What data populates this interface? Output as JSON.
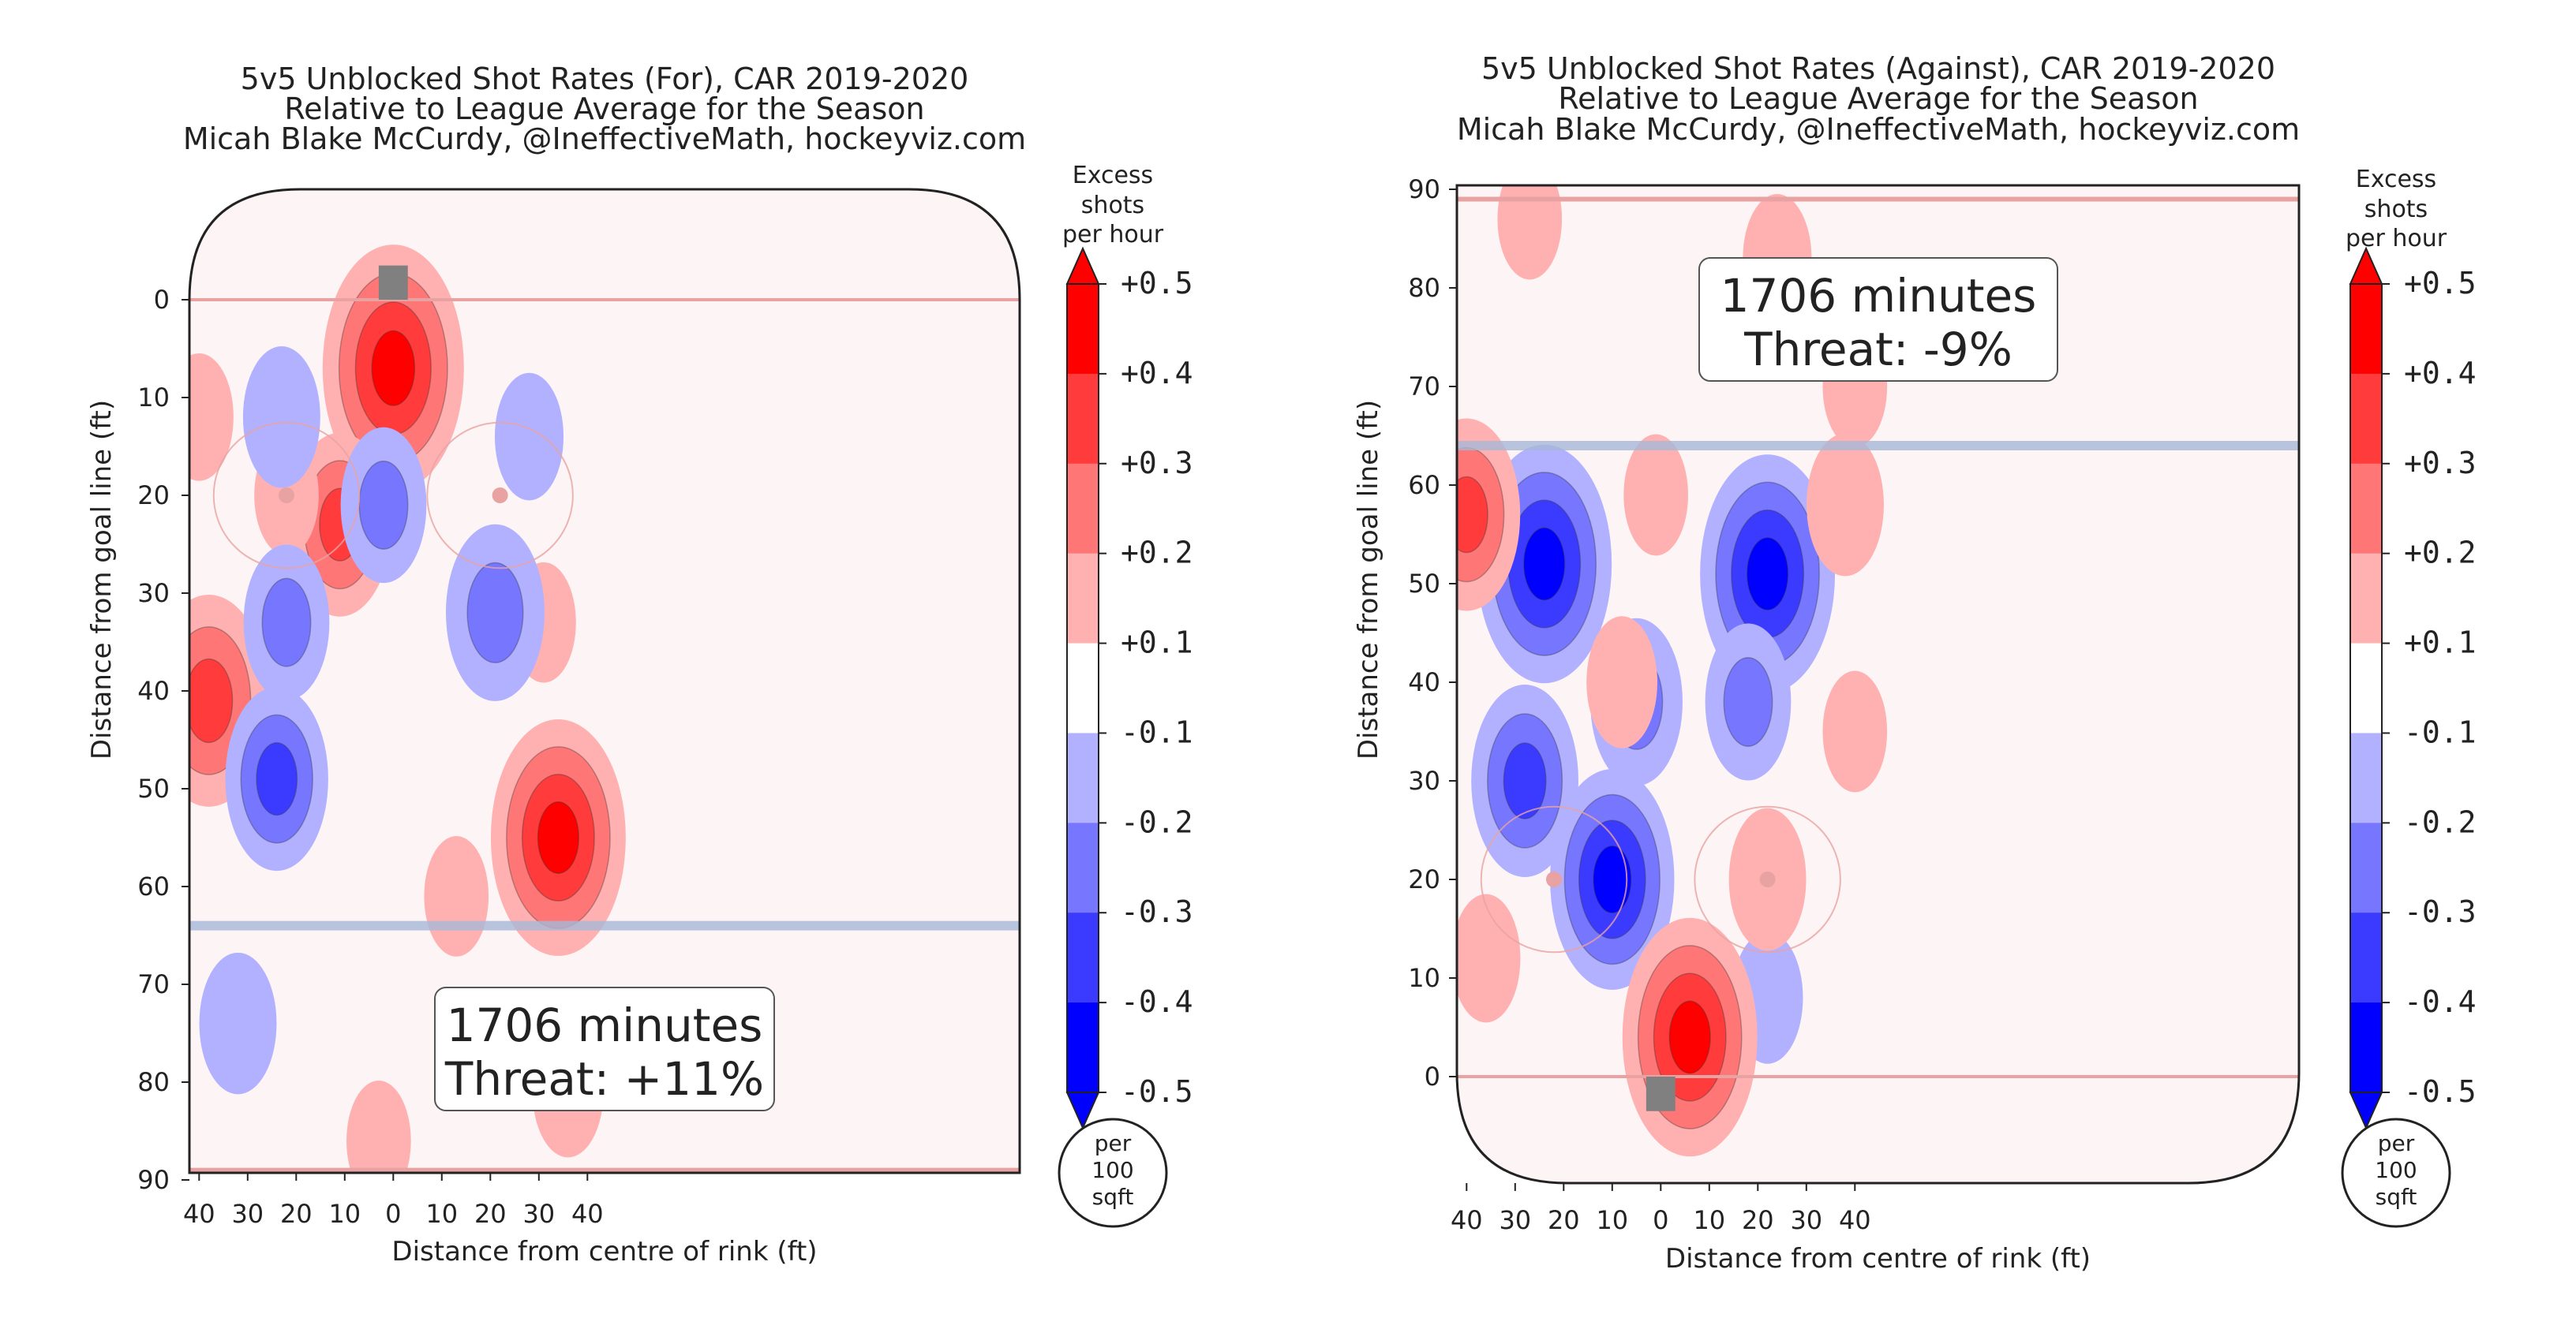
{
  "chart_data": [
    {
      "type": "heatmap",
      "title": [
        "5v5 Unblocked Shot Rates (For), CAR 2019-2020",
        "Relative to League Average for the Season",
        "Micah Blake McCurdy, @IneffectiveMath, hockeyviz.com"
      ],
      "xlabel": "Distance from centre of rink (ft)",
      "ylabel": "Distance from goal line (ft)",
      "x_ticks": [
        "40",
        "30",
        "20",
        "10",
        "0",
        "10",
        "20",
        "30",
        "40"
      ],
      "y_ticks": [
        "0",
        "10",
        "20",
        "30",
        "40",
        "50",
        "60",
        "70",
        "80",
        "90"
      ],
      "ylim": [
        90,
        -12
      ],
      "y_inverted": true,
      "annotation": [
        "1706 minutes",
        "Threat: +11%"
      ],
      "blobs": [
        {
          "x": 0,
          "y": 7,
          "value": 0.48
        },
        {
          "x": 34,
          "y": 55,
          "value": 0.45
        },
        {
          "x": -38,
          "y": 41,
          "value": 0.38
        },
        {
          "x": -11,
          "y": 23,
          "value": 0.3
        },
        {
          "x": -40,
          "y": 12,
          "value": 0.14
        },
        {
          "x": 31,
          "y": 33,
          "value": 0.12
        },
        {
          "x": -22,
          "y": 20,
          "value": 0.12
        },
        {
          "x": 13,
          "y": 61,
          "value": 0.12
        },
        {
          "x": 36,
          "y": 81,
          "value": 0.15
        },
        {
          "x": -3,
          "y": 86,
          "value": 0.12
        },
        {
          "x": 21,
          "y": 32,
          "value": -0.28
        },
        {
          "x": -24,
          "y": 49,
          "value": -0.3
        },
        {
          "x": -22,
          "y": 33,
          "value": -0.22
        },
        {
          "x": -2,
          "y": 21,
          "value": -0.22
        },
        {
          "x": -23,
          "y": 12,
          "value": -0.18
        },
        {
          "x": 28,
          "y": 14,
          "value": -0.14
        },
        {
          "x": -32,
          "y": 74,
          "value": -0.18
        }
      ]
    },
    {
      "type": "heatmap",
      "title": [
        "5v5 Unblocked Shot Rates (Against), CAR 2019-2020",
        "Relative to League Average for the Season",
        "Micah Blake McCurdy, @IneffectiveMath, hockeyviz.com"
      ],
      "xlabel": "Distance from centre of rink (ft)",
      "ylabel": "Distance from goal line (ft)",
      "x_ticks": [
        "40",
        "30",
        "20",
        "10",
        "0",
        "10",
        "20",
        "30",
        "40"
      ],
      "y_ticks": [
        "0",
        "10",
        "20",
        "30",
        "40",
        "50",
        "60",
        "70",
        "80",
        "90"
      ],
      "ylim": [
        -12,
        90
      ],
      "y_inverted": false,
      "annotation": [
        "1706 minutes",
        "Threat: -9%"
      ],
      "blobs": [
        {
          "x": -24,
          "y": 52,
          "value": -0.45
        },
        {
          "x": 22,
          "y": 51,
          "value": -0.45
        },
        {
          "x": -10,
          "y": 20,
          "value": -0.4
        },
        {
          "x": -28,
          "y": 30,
          "value": -0.32
        },
        {
          "x": -5,
          "y": 38,
          "value": -0.25
        },
        {
          "x": 18,
          "y": 38,
          "value": -0.22
        },
        {
          "x": 22,
          "y": 8,
          "value": -0.15
        },
        {
          "x": 6,
          "y": 4,
          "value": 0.45
        },
        {
          "x": -40,
          "y": 57,
          "value": 0.32
        },
        {
          "x": 38,
          "y": 58,
          "value": 0.18
        },
        {
          "x": -8,
          "y": 40,
          "value": 0.15
        },
        {
          "x": 22,
          "y": 20,
          "value": 0.18
        },
        {
          "x": -36,
          "y": 12,
          "value": 0.14
        },
        {
          "x": 24,
          "y": 83,
          "value": 0.14
        },
        {
          "x": -27,
          "y": 87,
          "value": 0.12
        },
        {
          "x": -1,
          "y": 59,
          "value": 0.12
        },
        {
          "x": 40,
          "y": 70,
          "value": 0.12
        },
        {
          "x": 40,
          "y": 35,
          "value": 0.12
        }
      ]
    }
  ],
  "colorbar": {
    "title": [
      "Excess",
      "shots",
      "per hour"
    ],
    "levels": [
      "+0.5",
      "+0.4",
      "+0.3",
      "+0.2",
      "+0.1",
      "-0.1",
      "-0.2",
      "-0.3",
      "-0.4",
      "-0.5"
    ],
    "colors": [
      "#ff0000",
      "#ff3b3b",
      "#ff7676",
      "#ffb1b1",
      "#ffffff",
      "#b1b1ff",
      "#7676ff",
      "#3b3bff",
      "#0000ff"
    ],
    "unit": [
      "per",
      "100",
      "sqft"
    ]
  },
  "colors": {
    "red_line": "#e8a2a2",
    "blue_line": "#a8b8d8",
    "net": "#808080",
    "boards": "#222222"
  }
}
